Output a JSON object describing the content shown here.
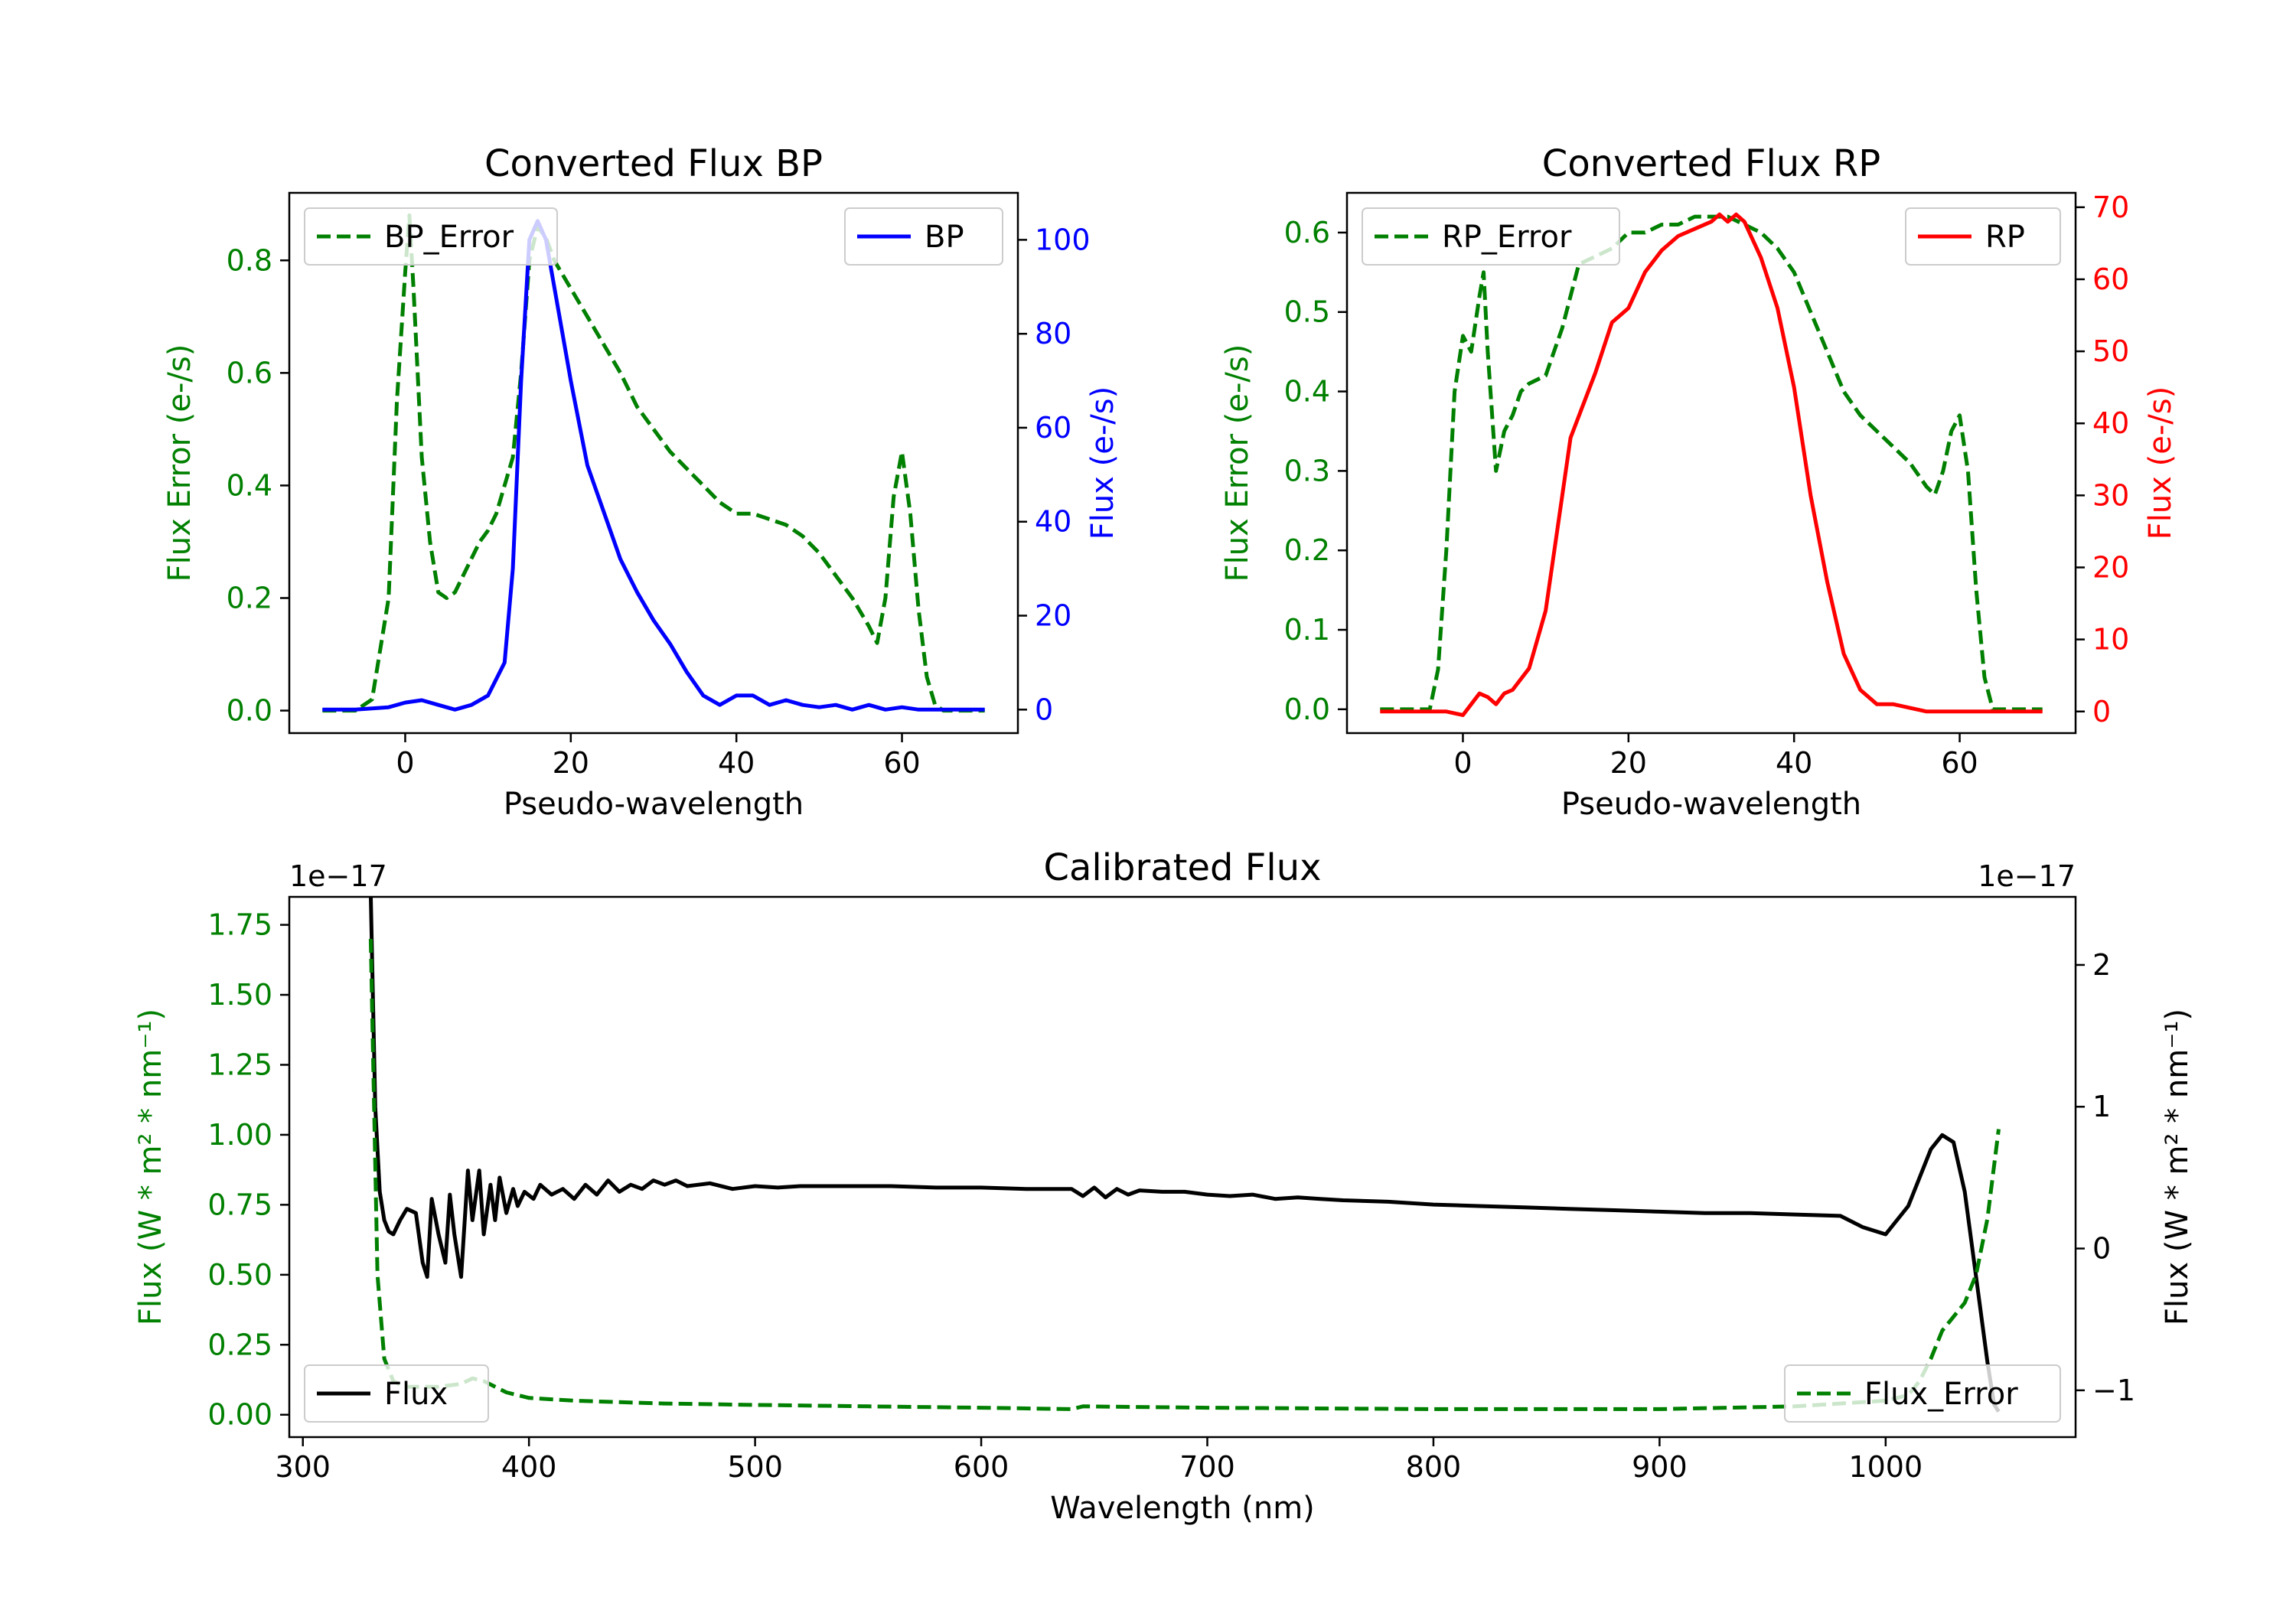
{
  "chart_data": [
    {
      "id": "bp",
      "type": "line",
      "title": "Converted Flux BP",
      "xlabel": "Pseudo-wavelength",
      "ylabel_left": "Flux Error (e-/s)",
      "ylabel_right": "Flux (e-/s)",
      "xlim": [
        -14,
        74
      ],
      "ylim_left": [
        -0.04,
        0.92
      ],
      "ylim_right": [
        -5,
        110
      ],
      "xticks": [
        0,
        20,
        40,
        60
      ],
      "yticks_left": [
        0.0,
        0.2,
        0.4,
        0.6,
        0.8
      ],
      "ytick_labels_left": [
        "0.0",
        "0.2",
        "0.4",
        "0.6",
        "0.8"
      ],
      "yticks_right": [
        0,
        20,
        40,
        60,
        80,
        100
      ],
      "ytick_labels_right": [
        "0",
        "20",
        "40",
        "60",
        "80",
        "100"
      ],
      "colors": {
        "left": "#008000",
        "right": "#0000ff"
      },
      "series": [
        {
          "name": "BP_Error",
          "axis": "left",
          "color": "#008000",
          "style": "dashed",
          "x": [
            -10,
            -6,
            -4,
            -2,
            -1,
            0,
            0.5,
            1,
            2,
            3,
            4,
            5,
            6,
            7,
            8,
            9,
            10,
            11,
            12,
            13,
            14,
            15,
            16,
            17,
            18,
            20,
            22,
            24,
            26,
            28,
            30,
            32,
            34,
            36,
            38,
            40,
            42,
            44,
            46,
            48,
            50,
            52,
            54,
            56,
            57,
            58,
            59,
            60,
            61,
            62,
            63,
            64,
            65,
            66,
            70
          ],
          "values": [
            0.0,
            0.0,
            0.02,
            0.2,
            0.55,
            0.78,
            0.88,
            0.75,
            0.45,
            0.3,
            0.21,
            0.2,
            0.21,
            0.24,
            0.27,
            0.3,
            0.32,
            0.35,
            0.4,
            0.45,
            0.6,
            0.8,
            0.86,
            0.84,
            0.8,
            0.75,
            0.7,
            0.65,
            0.6,
            0.54,
            0.5,
            0.46,
            0.43,
            0.4,
            0.37,
            0.35,
            0.35,
            0.34,
            0.33,
            0.31,
            0.28,
            0.24,
            0.2,
            0.15,
            0.12,
            0.2,
            0.38,
            0.46,
            0.35,
            0.18,
            0.06,
            0.01,
            0.0,
            0.0,
            0.0
          ]
        },
        {
          "name": "BP",
          "axis": "right",
          "color": "#0000ff",
          "style": "solid",
          "x": [
            -10,
            -6,
            -2,
            0,
            2,
            4,
            6,
            8,
            10,
            12,
            13,
            14,
            15,
            16,
            17,
            18,
            20,
            22,
            24,
            26,
            28,
            30,
            32,
            34,
            36,
            38,
            40,
            42,
            44,
            46,
            48,
            50,
            52,
            54,
            56,
            58,
            60,
            62,
            64,
            66,
            70
          ],
          "values": [
            0,
            0,
            0.5,
            1.5,
            2,
            1,
            0,
            1,
            3,
            10,
            30,
            70,
            100,
            104,
            100,
            90,
            70,
            52,
            42,
            32,
            25,
            19,
            14,
            8,
            3,
            1,
            3,
            3,
            1,
            2,
            1,
            0.5,
            1,
            0,
            1,
            0,
            0.5,
            0,
            0,
            0,
            0
          ]
        }
      ],
      "legend_left": {
        "label": "BP_Error",
        "placement": "upper-left"
      },
      "legend_right": {
        "label": "BP",
        "placement": "upper-right"
      }
    },
    {
      "id": "rp",
      "type": "line",
      "title": "Converted Flux RP",
      "xlabel": "Pseudo-wavelength",
      "ylabel_left": "Flux Error (e-/s)",
      "ylabel_right": "Flux (e-/s)",
      "xlim": [
        -14,
        74
      ],
      "ylim_left": [
        -0.03,
        0.65
      ],
      "ylim_right": [
        -3,
        72
      ],
      "xticks": [
        0,
        20,
        40,
        60
      ],
      "yticks_left": [
        0.0,
        0.1,
        0.2,
        0.3,
        0.4,
        0.5,
        0.6
      ],
      "ytick_labels_left": [
        "0.0",
        "0.1",
        "0.2",
        "0.3",
        "0.4",
        "0.5",
        "0.6"
      ],
      "yticks_right": [
        0,
        10,
        20,
        30,
        40,
        50,
        60,
        70
      ],
      "ytick_labels_right": [
        "0",
        "10",
        "20",
        "30",
        "40",
        "50",
        "60",
        "70"
      ],
      "colors": {
        "left": "#008000",
        "right": "#ff0000"
      },
      "series": [
        {
          "name": "RP_Error",
          "axis": "left",
          "color": "#008000",
          "style": "dashed",
          "x": [
            -10,
            -6,
            -4,
            -3,
            -2,
            -1,
            0,
            1,
            2,
            2.5,
            3,
            4,
            5,
            6,
            7,
            8,
            10,
            12,
            14,
            16,
            18,
            20,
            22,
            24,
            26,
            28,
            30,
            32,
            34,
            36,
            38,
            40,
            42,
            44,
            46,
            48,
            50,
            52,
            54,
            56,
            57,
            58,
            59,
            60,
            61,
            62,
            63,
            64,
            66,
            70
          ],
          "values": [
            0.0,
            0.0,
            0.0,
            0.05,
            0.2,
            0.4,
            0.47,
            0.45,
            0.52,
            0.55,
            0.45,
            0.3,
            0.35,
            0.37,
            0.4,
            0.41,
            0.42,
            0.48,
            0.56,
            0.57,
            0.58,
            0.6,
            0.6,
            0.61,
            0.61,
            0.62,
            0.62,
            0.62,
            0.61,
            0.6,
            0.58,
            0.55,
            0.5,
            0.45,
            0.4,
            0.37,
            0.35,
            0.33,
            0.31,
            0.28,
            0.27,
            0.3,
            0.35,
            0.37,
            0.3,
            0.15,
            0.04,
            0.0,
            0.0,
            0.0
          ]
        },
        {
          "name": "RP",
          "axis": "right",
          "color": "#ff0000",
          "style": "solid",
          "x": [
            -10,
            -4,
            -2,
            0,
            1,
            2,
            3,
            4,
            5,
            6,
            8,
            10,
            12,
            13,
            14,
            16,
            18,
            20,
            22,
            24,
            26,
            28,
            30,
            31,
            32,
            33,
            34,
            36,
            38,
            40,
            42,
            44,
            46,
            48,
            50,
            52,
            54,
            56,
            58,
            60,
            64,
            70
          ],
          "values": [
            0,
            0,
            0,
            -0.5,
            1,
            2.5,
            2,
            1,
            2.5,
            3,
            6,
            14,
            30,
            38,
            41,
            47,
            54,
            56,
            61,
            64,
            66,
            67,
            68,
            69,
            68,
            69,
            68,
            63,
            56,
            45,
            30,
            18,
            8,
            3,
            1,
            1,
            0.5,
            0,
            0,
            0,
            0,
            0
          ]
        }
      ],
      "legend_left": {
        "label": "RP_Error",
        "placement": "upper-left"
      },
      "legend_right": {
        "label": "RP",
        "placement": "upper-right"
      }
    },
    {
      "id": "cal",
      "type": "line",
      "title": "Calibrated Flux",
      "xlabel": "Wavelength (nm)",
      "ylabel_left": "Flux (W * m² * nm⁻¹)",
      "ylabel_right": "Flux (W * m² * nm⁻¹)",
      "offset_left": "1e−17",
      "offset_right": "1e−17",
      "xlim": [
        294,
        1084
      ],
      "ylim_left": [
        -0.08,
        1.85
      ],
      "ylim_right": [
        -1.33,
        2.48
      ],
      "xticks": [
        300,
        400,
        500,
        600,
        700,
        800,
        900,
        1000
      ],
      "yticks_left": [
        0.0,
        0.25,
        0.5,
        0.75,
        1.0,
        1.25,
        1.5,
        1.75
      ],
      "ytick_labels_left": [
        "0.00",
        "0.25",
        "0.50",
        "0.75",
        "1.00",
        "1.25",
        "1.50",
        "1.75"
      ],
      "yticks_right": [
        -1,
        0,
        1,
        2
      ],
      "ytick_labels_right": [
        "−1",
        "0",
        "1",
        "2"
      ],
      "colors": {
        "left": "#008000",
        "right": "#000000"
      },
      "series": [
        {
          "name": "Flux",
          "axis": "right",
          "color": "#000000",
          "style": "solid",
          "x": [
            330,
            332,
            334,
            336,
            338,
            340,
            343,
            346,
            350,
            353,
            355,
            357,
            360,
            363,
            365,
            367,
            370,
            373,
            375,
            378,
            380,
            383,
            385,
            387,
            390,
            393,
            395,
            398,
            402,
            405,
            410,
            415,
            420,
            425,
            430,
            435,
            440,
            445,
            450,
            455,
            460,
            465,
            470,
            480,
            490,
            500,
            510,
            520,
            540,
            560,
            580,
            600,
            620,
            640,
            645,
            650,
            655,
            660,
            665,
            670,
            680,
            690,
            700,
            710,
            720,
            730,
            740,
            750,
            760,
            780,
            800,
            820,
            840,
            860,
            880,
            900,
            920,
            940,
            960,
            980,
            990,
            1000,
            1010,
            1020,
            1025,
            1030,
            1035,
            1040,
            1045,
            1048,
            1050
          ],
          "values": [
            2.5,
            1.0,
            0.4,
            0.2,
            0.12,
            0.1,
            0.2,
            0.28,
            0.25,
            -0.1,
            -0.2,
            0.35,
            0.1,
            -0.1,
            0.38,
            0.1,
            -0.2,
            0.55,
            0.2,
            0.55,
            0.1,
            0.45,
            0.2,
            0.5,
            0.25,
            0.42,
            0.3,
            0.4,
            0.35,
            0.45,
            0.38,
            0.42,
            0.35,
            0.45,
            0.38,
            0.48,
            0.4,
            0.45,
            0.42,
            0.48,
            0.45,
            0.48,
            0.44,
            0.46,
            0.42,
            0.44,
            0.43,
            0.44,
            0.44,
            0.44,
            0.43,
            0.43,
            0.42,
            0.42,
            0.37,
            0.43,
            0.36,
            0.42,
            0.38,
            0.41,
            0.4,
            0.4,
            0.38,
            0.37,
            0.38,
            0.35,
            0.36,
            0.35,
            0.34,
            0.33,
            0.31,
            0.3,
            0.29,
            0.28,
            0.27,
            0.26,
            0.25,
            0.25,
            0.24,
            0.23,
            0.15,
            0.1,
            0.3,
            0.7,
            0.8,
            0.75,
            0.4,
            -0.2,
            -0.8,
            -1.1,
            -1.15
          ]
        },
        {
          "name": "Flux_Error",
          "axis": "left",
          "color": "#008000",
          "style": "dashed",
          "x": [
            330,
            333,
            336,
            340,
            345,
            350,
            360,
            370,
            375,
            380,
            390,
            400,
            420,
            440,
            460,
            500,
            550,
            600,
            640,
            645,
            700,
            800,
            900,
            960,
            1000,
            1010,
            1015,
            1020,
            1025,
            1030,
            1035,
            1040,
            1045,
            1050
          ],
          "values": [
            1.7,
            0.5,
            0.2,
            0.12,
            0.1,
            0.1,
            0.1,
            0.11,
            0.13,
            0.12,
            0.08,
            0.06,
            0.05,
            0.045,
            0.04,
            0.035,
            0.03,
            0.025,
            0.02,
            0.03,
            0.025,
            0.02,
            0.02,
            0.03,
            0.05,
            0.07,
            0.12,
            0.2,
            0.3,
            0.35,
            0.4,
            0.5,
            0.7,
            1.02
          ]
        }
      ],
      "legend_left": {
        "label": "Flux",
        "placement": "lower-left"
      },
      "legend_right": {
        "label": "Flux_Error",
        "placement": "lower-right"
      }
    }
  ]
}
